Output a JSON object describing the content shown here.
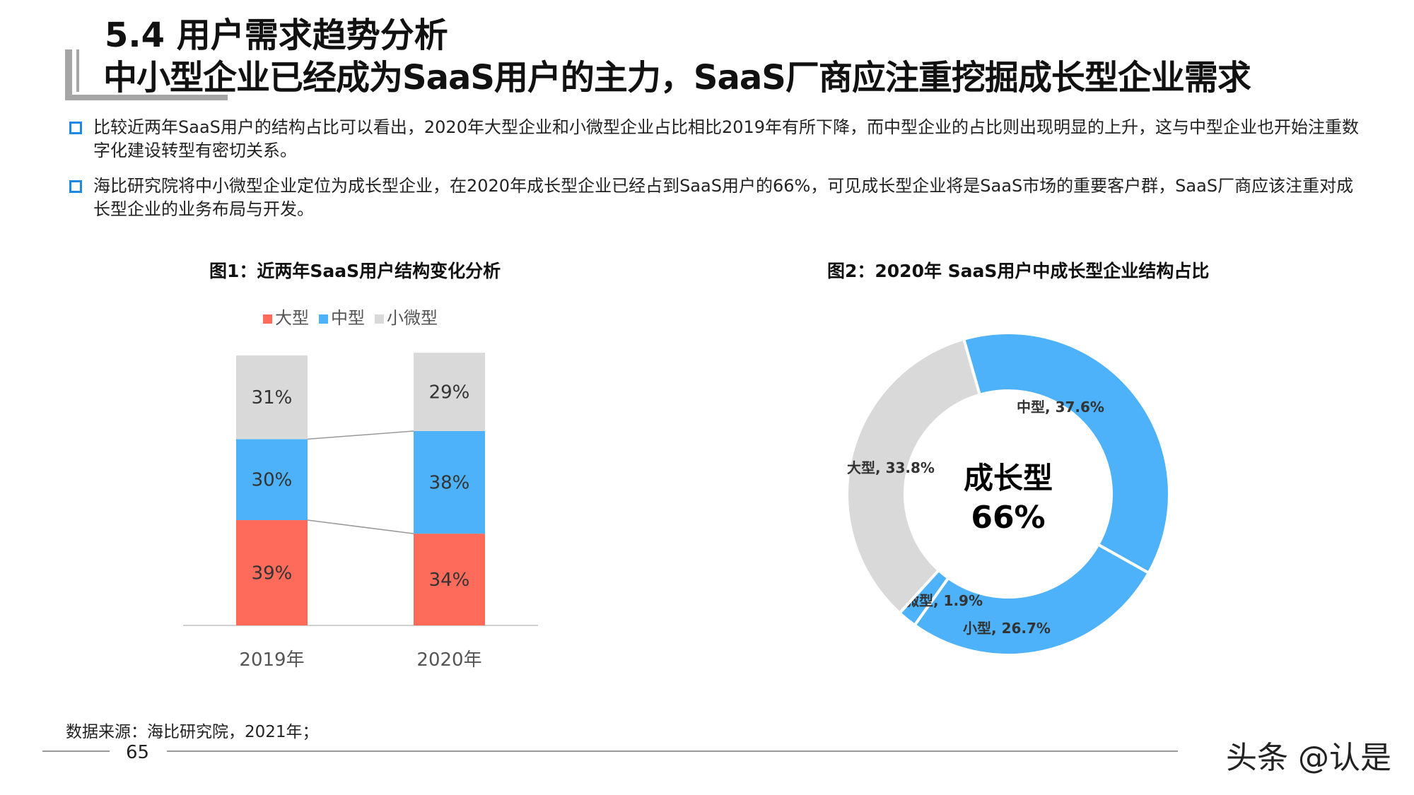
{
  "header": {
    "section": "5.4 用户需求趋势分析",
    "title": "中小型企业已经成为SaaS用户的主力，SaaS厂商应注重挖掘成长型企业需求"
  },
  "bullets": [
    "比较近两年SaaS用户的结构占比可以看出，2020年大型企业和小微型企业占比相比2019年有所下降，而中型企业的占比则出现明显的上升，这与中型企业也开始注重数字化建设转型有密切关系。",
    "海比研究院将中小微型企业定位为成长型企业，在2020年成长型企业已经占到SaaS用户的66%，可见成长型企业将是SaaS市场的重要客户群，SaaS厂商应该注重对成长型企业的业务布局与开发。"
  ],
  "footer": {
    "source": "数据来源：海比研究院，2021年；",
    "page": "65",
    "watermark": "头条 @认是"
  },
  "chart_data": [
    {
      "type": "bar",
      "stacked": true,
      "title": "图1：近两年SaaS用户结构变化分析",
      "categories": [
        "2019年",
        "2020年"
      ],
      "series": [
        {
          "name": "大型",
          "color": "#ff6b5b",
          "values": [
            39,
            34
          ],
          "labels": [
            "39%",
            "34%"
          ]
        },
        {
          "name": "中型",
          "color": "#4db2fa",
          "values": [
            30,
            38
          ],
          "labels": [
            "30%",
            "38%"
          ]
        },
        {
          "name": "小微型",
          "color": "#d9d9d9",
          "values": [
            31,
            29
          ],
          "labels": [
            "31%",
            "29%"
          ]
        }
      ],
      "ylim": [
        0,
        100
      ],
      "legend": "top"
    },
    {
      "type": "pie",
      "donut": true,
      "title": "图2：2020年 SaaS用户中成长型企业结构占比",
      "center_label": [
        "成长型",
        "66%"
      ],
      "slices": [
        {
          "name": "中型",
          "value": 37.6,
          "label": "中型, 37.6%",
          "color": "#4db2fa"
        },
        {
          "name": "小型",
          "value": 26.7,
          "label": "小型, 26.7%",
          "color": "#4db2fa"
        },
        {
          "name": "微型",
          "value": 1.9,
          "label": "微型, 1.9%",
          "color": "#4db2fa"
        },
        {
          "name": "大型",
          "value": 33.8,
          "label": "大型, 33.8%",
          "color": "#d9d9d9"
        }
      ]
    }
  ]
}
